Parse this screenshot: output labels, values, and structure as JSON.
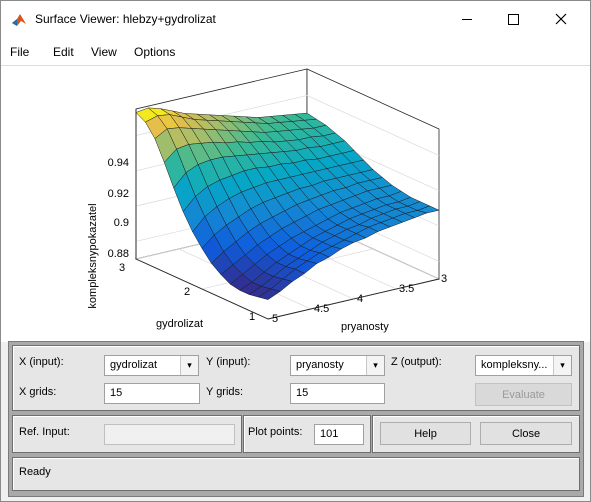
{
  "window": {
    "title": "Surface Viewer: hlebzy+gydrolizat"
  },
  "menu": [
    "File",
    "Edit",
    "View",
    "Options"
  ],
  "plot": {
    "zlabel": "kompleksnypokazatel",
    "xlabel": "pryanosty",
    "ylabel": "gydrolizat",
    "z_ticks": [
      "0.94",
      "0.92",
      "0.9",
      "0.88"
    ],
    "x_ticks": [
      "5",
      "4.5",
      "4",
      "3.5",
      "3"
    ],
    "y_ticks": [
      "3",
      "2",
      "1"
    ]
  },
  "controls": {
    "x_input_label": "X (input):",
    "x_input_value": "gydrolizat",
    "y_input_label": "Y (input):",
    "y_input_value": "pryanosty",
    "z_output_label": "Z (output):",
    "z_output_value": "kompleksny...",
    "x_grids_label": "X grids:",
    "x_grids_value": "15",
    "y_grids_label": "Y grids:",
    "y_grids_value": "15",
    "evaluate_label": "Evaluate",
    "ref_input_label": "Ref. Input:",
    "ref_input_value": "",
    "plot_points_label": "Plot points:",
    "plot_points_value": "101",
    "help_label": "Help",
    "close_label": "Close"
  },
  "status": {
    "text": "Ready"
  },
  "chart_data": {
    "type": "surface",
    "xlabel": "pryanosty",
    "ylabel": "gydrolizat",
    "zlabel": "kompleksnypokazatel",
    "x_range": [
      3,
      5
    ],
    "y_range": [
      1,
      3
    ],
    "z_range": [
      0.87,
      0.955
    ],
    "grid": true,
    "colormap": "parula",
    "z_grid": [
      [
        0.953,
        0.954,
        0.952,
        0.949,
        0.946,
        0.944,
        0.942,
        0.94,
        0.938,
        0.936,
        0.934,
        0.933,
        0.932,
        0.931,
        0.93
      ],
      [
        0.95,
        0.952,
        0.951,
        0.948,
        0.945,
        0.943,
        0.941,
        0.939,
        0.937,
        0.935,
        0.933,
        0.932,
        0.931,
        0.93,
        0.929
      ],
      [
        0.943,
        0.947,
        0.946,
        0.944,
        0.942,
        0.94,
        0.938,
        0.936,
        0.934,
        0.932,
        0.931,
        0.93,
        0.929,
        0.928,
        0.928
      ],
      [
        0.932,
        0.938,
        0.939,
        0.938,
        0.937,
        0.935,
        0.934,
        0.932,
        0.931,
        0.929,
        0.928,
        0.927,
        0.927,
        0.926,
        0.926
      ],
      [
        0.92,
        0.927,
        0.93,
        0.931,
        0.931,
        0.93,
        0.929,
        0.928,
        0.927,
        0.926,
        0.925,
        0.925,
        0.924,
        0.924,
        0.924
      ],
      [
        0.909,
        0.916,
        0.92,
        0.922,
        0.923,
        0.924,
        0.924,
        0.923,
        0.923,
        0.922,
        0.922,
        0.921,
        0.921,
        0.921,
        0.921
      ],
      [
        0.9,
        0.907,
        0.911,
        0.914,
        0.916,
        0.917,
        0.918,
        0.918,
        0.918,
        0.918,
        0.918,
        0.918,
        0.918,
        0.918,
        0.918
      ],
      [
        0.893,
        0.899,
        0.903,
        0.906,
        0.909,
        0.911,
        0.912,
        0.913,
        0.914,
        0.914,
        0.915,
        0.915,
        0.915,
        0.915,
        0.915
      ],
      [
        0.887,
        0.892,
        0.896,
        0.9,
        0.903,
        0.905,
        0.907,
        0.909,
        0.91,
        0.911,
        0.912,
        0.912,
        0.913,
        0.913,
        0.913
      ],
      [
        0.883,
        0.887,
        0.891,
        0.895,
        0.898,
        0.901,
        0.903,
        0.905,
        0.907,
        0.908,
        0.909,
        0.91,
        0.911,
        0.911,
        0.911
      ],
      [
        0.88,
        0.884,
        0.888,
        0.892,
        0.895,
        0.898,
        0.9,
        0.902,
        0.904,
        0.906,
        0.907,
        0.908,
        0.909,
        0.909,
        0.91
      ],
      [
        0.879,
        0.882,
        0.886,
        0.89,
        0.893,
        0.896,
        0.899,
        0.901,
        0.903,
        0.905,
        0.906,
        0.907,
        0.908,
        0.908,
        0.909
      ],
      [
        0.879,
        0.882,
        0.886,
        0.89,
        0.893,
        0.896,
        0.899,
        0.901,
        0.903,
        0.904,
        0.906,
        0.907,
        0.908,
        0.908,
        0.909
      ],
      [
        0.88,
        0.883,
        0.887,
        0.891,
        0.894,
        0.897,
        0.899,
        0.901,
        0.903,
        0.905,
        0.906,
        0.907,
        0.908,
        0.908,
        0.909
      ],
      [
        0.881,
        0.884,
        0.888,
        0.891,
        0.895,
        0.897,
        0.9,
        0.902,
        0.903,
        0.905,
        0.906,
        0.907,
        0.908,
        0.909,
        0.909
      ]
    ]
  }
}
